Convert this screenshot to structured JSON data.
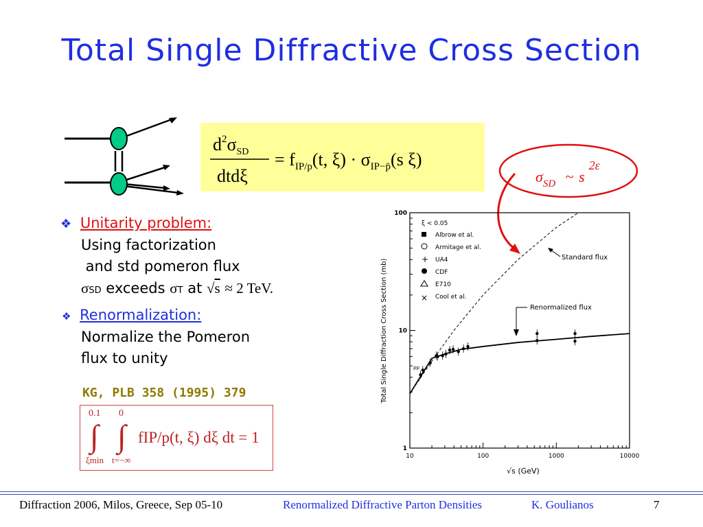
{
  "slide": {
    "title": "Total Single Diffractive Cross Section",
    "bullet1_head": "Unitarity problem:",
    "bullet1_lines": [
      "Using factorization",
      " and std pomeron flux"
    ],
    "bullet1_exceeds": "exceeds",
    "bullet1_at": "at",
    "bullet1_energy": "≈ 2 TeV.",
    "bullet2_head": "Renormalization:",
    "bullet2_lines": [
      "Normalize the Pomeron",
      "flux to unity"
    ],
    "reference": "KG, PLB 358 (1995) 379"
  },
  "equations": {
    "numerator": "d²σSD",
    "denominator": "dtdξ",
    "rhs": "= fIP/p(t, ξ) · σIP−p̄(sξ)",
    "sigma_sd_scaling": "σSD ~ s^2ε",
    "integral": "∫ from ξmin to 0.1 ∫ from t=−∞ to 0 fIP/p(t, ξ) dξ dt = 1",
    "integral_upper1": "0.1",
    "integral_upper2": "0",
    "integral_lower1": "ξmin",
    "integral_lower2": "t=−∞",
    "integral_body": "fIP/p(t, ξ) dξ dt = 1"
  },
  "footer": {
    "left": "Diffraction 2006, Milos, Greece, Sep 05-10",
    "center": "Renormalized Diffractive Parton Densities",
    "author": "K. Goulianos",
    "page": "7"
  },
  "colors": {
    "title": "#1f2ee0",
    "red": "#e01010",
    "node": "#00cc88",
    "eq_bg": "#ffff99",
    "ref": "#8f7a00"
  },
  "chart_data": {
    "type": "line",
    "xlabel": "√s (GeV)",
    "ylabel": "Total Single Diffraction Cross Section (mb)",
    "xscale": "log",
    "yscale": "log",
    "xlim": [
      10,
      10000
    ],
    "ylim": [
      1,
      100
    ],
    "x_ticks": [
      "10",
      "100",
      "1000",
      "10000"
    ],
    "y_ticks": [
      "1",
      "10",
      "100"
    ],
    "legend": {
      "header": "ξ < 0.05",
      "entries": [
        "Albrow et al.",
        "Armitage et al.",
        "UA4",
        "CDF",
        "E710",
        "Cool et al."
      ]
    },
    "annotations": [
      "Standard flux",
      "Renormalized flux",
      "pp"
    ],
    "series": [
      {
        "name": "Standard flux",
        "style": "dashed",
        "x": [
          10,
          20,
          40,
          100,
          300,
          1000,
          2000
        ],
        "y": [
          2.9,
          5.5,
          10,
          20,
          40,
          75,
          100
        ]
      },
      {
        "name": "Renormalized flux",
        "style": "solid",
        "x": [
          10,
          20,
          30,
          50,
          100,
          300,
          1000,
          3000,
          10000
        ],
        "y": [
          2.9,
          5.8,
          6.3,
          6.9,
          7.3,
          7.9,
          8.4,
          8.9,
          9.4
        ]
      }
    ],
    "points": [
      {
        "x": 14,
        "y": 4.2
      },
      {
        "x": 15,
        "y": 4.6
      },
      {
        "x": 19,
        "y": 5.3
      },
      {
        "x": 23,
        "y": 6.1
      },
      {
        "x": 24,
        "y": 6.0
      },
      {
        "x": 28,
        "y": 6.1
      },
      {
        "x": 31,
        "y": 6.3
      },
      {
        "x": 35,
        "y": 6.8
      },
      {
        "x": 39,
        "y": 6.9
      },
      {
        "x": 46,
        "y": 6.6
      },
      {
        "x": 54,
        "y": 7.0
      },
      {
        "x": 62,
        "y": 7.3
      },
      {
        "x": 546,
        "y": 9.4
      },
      {
        "x": 546,
        "y": 8.2
      },
      {
        "x": 1800,
        "y": 9.4
      },
      {
        "x": 1800,
        "y": 8.1
      }
    ]
  }
}
